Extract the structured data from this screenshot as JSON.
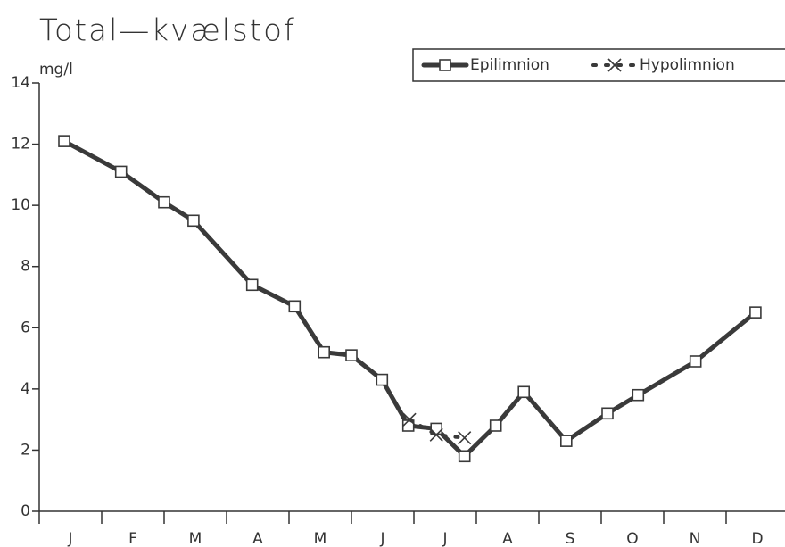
{
  "chart_data": {
    "type": "line",
    "title": "Total—kvælstof",
    "y_label": "mg/l",
    "categories": [
      "J",
      "F",
      "M",
      "A",
      "M",
      "J",
      "J",
      "A",
      "S",
      "O",
      "N",
      "D"
    ],
    "xlim": [
      0,
      12
    ],
    "xticks": [
      0,
      1,
      2,
      3,
      4,
      5,
      6,
      7,
      8,
      9,
      10,
      11,
      12
    ],
    "ylim": [
      0,
      14
    ],
    "yticks": [
      0,
      2,
      4,
      6,
      8,
      10,
      12,
      14
    ],
    "legend": "top-right",
    "series": [
      {
        "name": "Epilimnion",
        "color": "#3a3a3a",
        "marker": "square",
        "dashed": false,
        "x": [
          0.4,
          1.31,
          2.0,
          2.47,
          3.41,
          4.09,
          4.56,
          5.0,
          5.49,
          5.91,
          6.36,
          6.81,
          7.31,
          7.76,
          8.44,
          9.1,
          9.59,
          10.51,
          11.47
        ],
        "values": [
          12.1,
          11.1,
          10.1,
          9.5,
          7.4,
          6.7,
          5.2,
          5.1,
          4.3,
          2.8,
          2.7,
          1.8,
          2.8,
          3.9,
          2.3,
          3.2,
          3.8,
          4.9,
          6.5
        ]
      },
      {
        "name": "Hypolimnion",
        "color": "#3a3a3a",
        "marker": "x",
        "dashed": true,
        "x": [
          5.93,
          6.36,
          6.81
        ],
        "values": [
          3.0,
          2.5,
          2.4
        ]
      }
    ]
  }
}
